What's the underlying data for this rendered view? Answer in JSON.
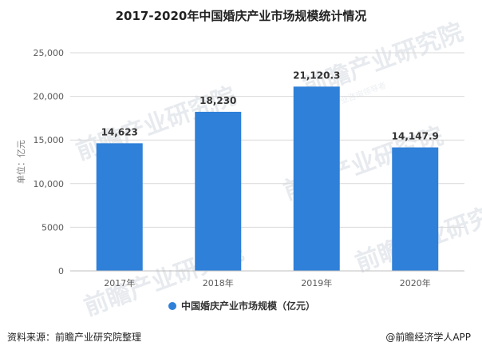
{
  "chart_data": {
    "type": "bar",
    "title": "2017-2020年中国婚庆产业市场规模统计情况",
    "ylabel": "单位：亿元",
    "xlabel": "",
    "categories": [
      "2017年",
      "2018年",
      "2019年",
      "2020年"
    ],
    "series": [
      {
        "name": "中国婚庆产业市场规模（亿元）",
        "values": [
          14623,
          18230,
          21120.3,
          14147.9
        ],
        "labels": [
          "14,623",
          "18,230",
          "21,120.3",
          "14,147.9"
        ],
        "color": "#2f80d8"
      }
    ],
    "yticks": [
      "0",
      "5000",
      "10,000",
      "15,000",
      "20,000",
      "25,000"
    ],
    "ylim": [
      0,
      25000
    ],
    "grid": true,
    "legend": "bottom"
  },
  "footer": {
    "source": "资料来源：前瞻产业研究院整理",
    "brand": "@前瞻经济学人APP"
  },
  "watermark": {
    "text": "前瞻产业研究院",
    "sub": "中国产业咨询领导者"
  }
}
